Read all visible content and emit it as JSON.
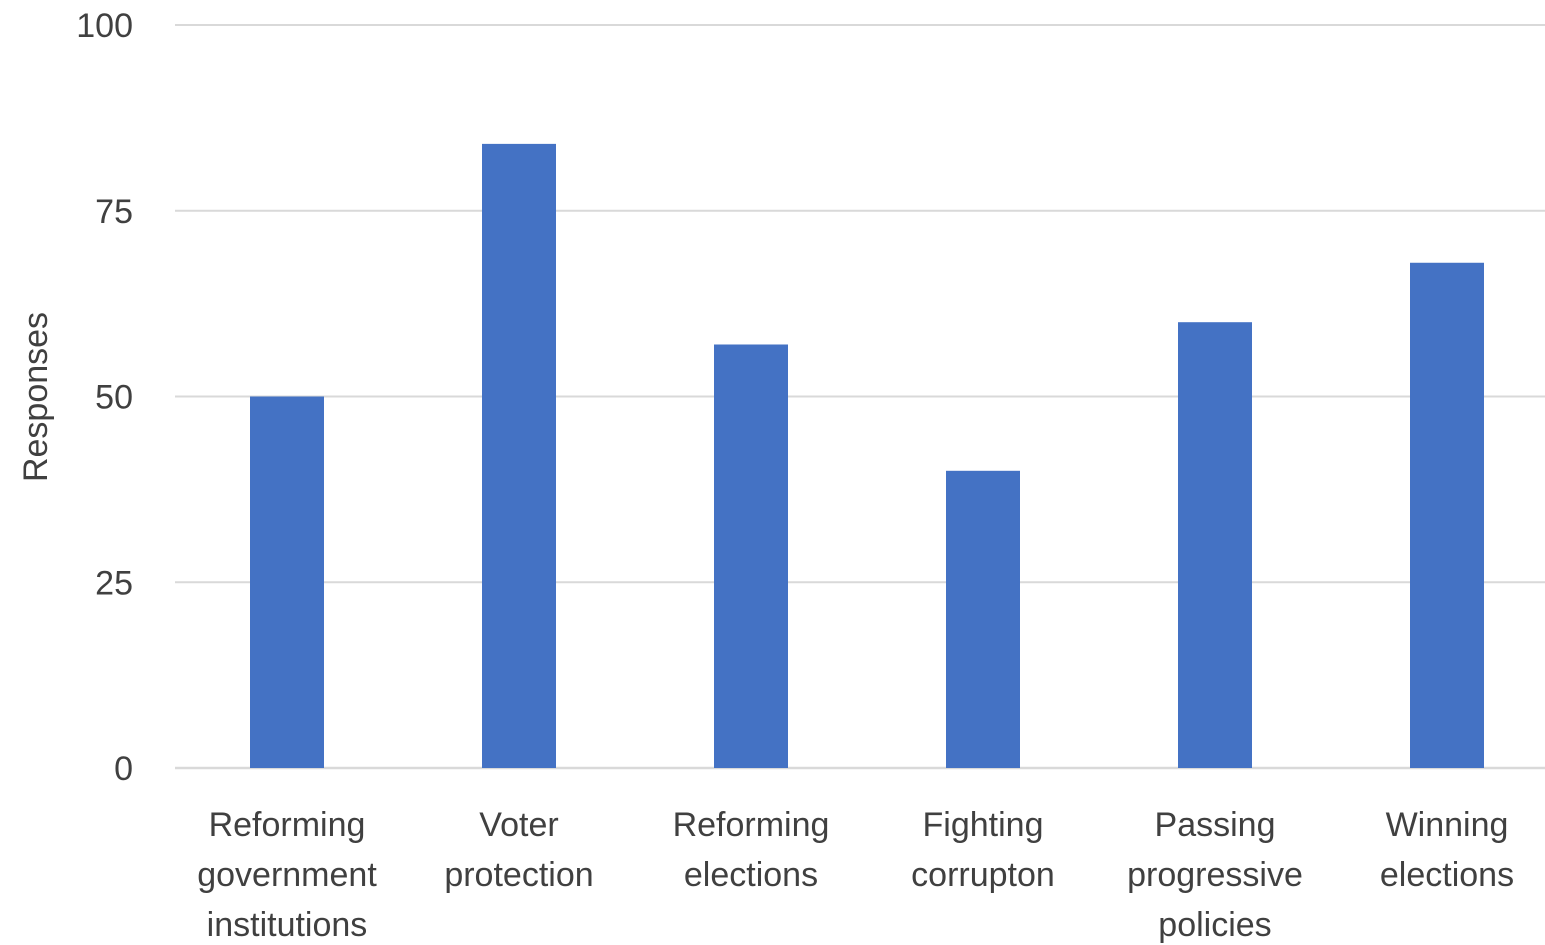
{
  "chart_data": {
    "type": "bar",
    "categories": [
      [
        "Reforming",
        "government",
        "institutions"
      ],
      [
        "Voter",
        "protection"
      ],
      [
        "Reforming",
        "elections"
      ],
      [
        "Fighting",
        "corrupton"
      ],
      [
        "Passing",
        "progressive",
        "policies"
      ],
      [
        "Winning",
        "elections"
      ]
    ],
    "values": [
      50,
      84,
      57,
      40,
      60,
      68
    ],
    "title": "",
    "xlabel": "",
    "ylabel": "Responses",
    "ylim": [
      0,
      100
    ],
    "yticks": [
      "0",
      "25",
      "50",
      "75",
      "100"
    ],
    "grid": true,
    "bar_color": "#4472c4"
  }
}
